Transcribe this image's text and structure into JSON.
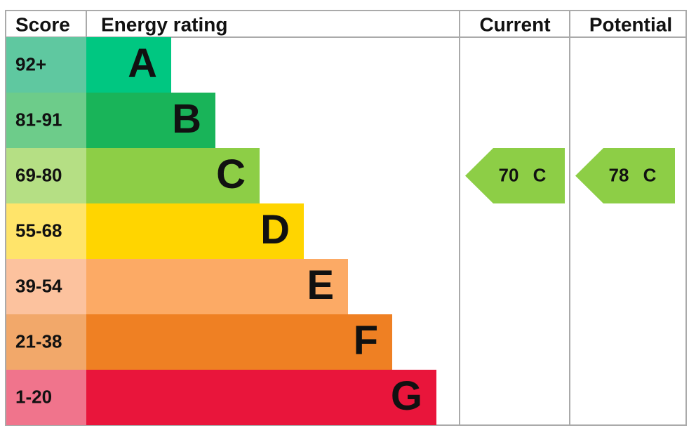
{
  "header": {
    "score": "Score",
    "energy_rating": "Energy rating",
    "current": "Current",
    "potential": "Potential"
  },
  "bands": [
    {
      "score": "92+",
      "rating": "A",
      "color": "#00c781",
      "score_color": "#5fc8a0"
    },
    {
      "score": "81-91",
      "rating": "B",
      "color": "#19b459",
      "score_color": "#6dcc8a"
    },
    {
      "score": "69-80",
      "rating": "C",
      "color": "#8dce46",
      "score_color": "#b5df84"
    },
    {
      "score": "55-68",
      "rating": "D",
      "color": "#ffd500",
      "score_color": "#ffe46a"
    },
    {
      "score": "39-54",
      "rating": "E",
      "color": "#fcaa65",
      "score_color": "#fcc29e"
    },
    {
      "score": "21-38",
      "rating": "F",
      "color": "#ef8023",
      "score_color": "#f2a86a"
    },
    {
      "score": "1-20",
      "rating": "G",
      "color": "#e9153b",
      "score_color": "#f0748c"
    }
  ],
  "current": {
    "value": 70,
    "rating": "C"
  },
  "potential": {
    "value": 78,
    "rating": "C"
  }
}
